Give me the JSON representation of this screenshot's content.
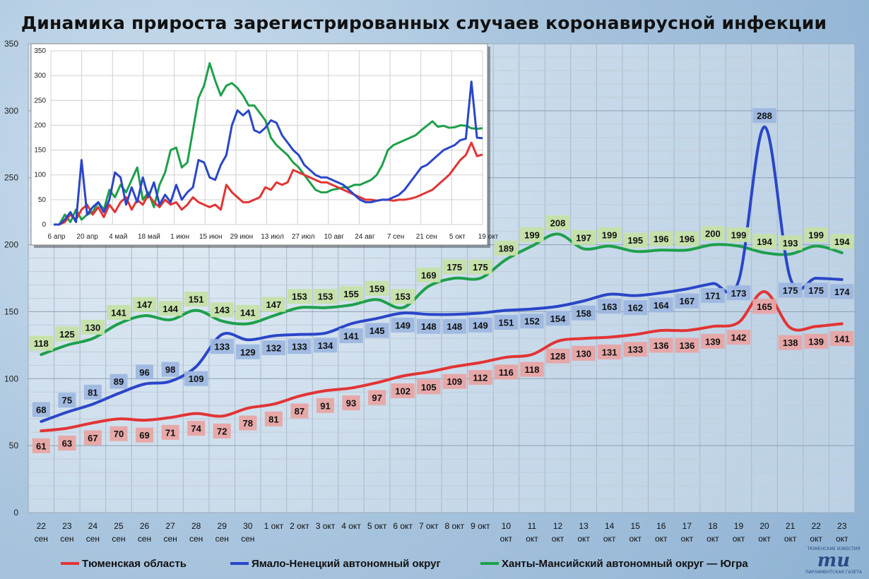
{
  "title": "Динамика прироста зарегистрированных случаев коронавирусной инфекции",
  "colors": {
    "tyumen": "#e23434",
    "yamal": "#2a46c8",
    "hmao": "#1ea04b",
    "tyumen_label_bg": "#e8a4a4",
    "yamal_label_bg": "#9db7e0",
    "hmao_label_bg": "#c6e0a8"
  },
  "chart_data": [
    {
      "type": "line",
      "title": "",
      "ylim": [
        0,
        350
      ],
      "yticks": [
        0,
        50,
        100,
        150,
        200,
        250,
        300,
        350
      ],
      "grid": true,
      "legend_position": "bottom",
      "x": [
        "22 сен",
        "23 сен",
        "24 сен",
        "25 сен",
        "26 сен",
        "27 сен",
        "28 сен",
        "29 сен",
        "30 сен",
        "1 окт",
        "2 окт",
        "3 окт",
        "4 окт",
        "5 окт",
        "6 окт",
        "7 окт",
        "8 окт",
        "9 окт",
        "10 окт",
        "11 окт",
        "12 окт",
        "13 окт",
        "14 окт",
        "15 окт",
        "16 окт",
        "17 окт",
        "18 окт",
        "19 окт",
        "20 окт",
        "21 окт",
        "22 окт",
        "23 окт"
      ],
      "series": [
        {
          "name": "Тюменская область",
          "key": "tyumen",
          "values": [
            61,
            63,
            67,
            70,
            69,
            71,
            74,
            72,
            78,
            81,
            87,
            91,
            93,
            97,
            102,
            105,
            109,
            112,
            116,
            118,
            128,
            130,
            131,
            133,
            136,
            136,
            139,
            142,
            165,
            138,
            139,
            141
          ]
        },
        {
          "name": "Ямало-Ненецкий автономный округ",
          "key": "yamal",
          "values": [
            68,
            75,
            81,
            89,
            96,
            98,
            109,
            133,
            129,
            132,
            133,
            134,
            141,
            145,
            149,
            148,
            148,
            149,
            151,
            152,
            154,
            158,
            163,
            162,
            164,
            167,
            171,
            173,
            288,
            175,
            175,
            174
          ]
        },
        {
          "name": "Ханты-Мансийский автономный округ — Югра",
          "key": "hmao",
          "values": [
            118,
            125,
            130,
            141,
            147,
            144,
            151,
            143,
            141,
            147,
            153,
            153,
            155,
            159,
            153,
            169,
            175,
            175,
            189,
            199,
            208,
            197,
            199,
            195,
            196,
            196,
            200,
            199,
            194,
            193,
            199,
            194
          ]
        }
      ]
    },
    {
      "type": "line",
      "title": "",
      "ylim": [
        0,
        350
      ],
      "yticks": [
        0,
        50,
        100,
        150,
        200,
        250,
        300,
        350
      ],
      "grid": true,
      "xticks": [
        "6 апр",
        "20 апр",
        "4 май",
        "18 май",
        "1 июн",
        "15 июн",
        "29 июн",
        "13 июл",
        "27 июл",
        "10 авг",
        "24 авг",
        "7 сен",
        "21 сен",
        "5 окт",
        "19 окт"
      ],
      "series": [
        {
          "key": "tyumen",
          "values": [
            0,
            0,
            5,
            20,
            10,
            30,
            40,
            20,
            35,
            15,
            40,
            25,
            45,
            55,
            30,
            50,
            40,
            60,
            45,
            35,
            50,
            40,
            45,
            30,
            40,
            55,
            45,
            40,
            35,
            40,
            30,
            80,
            65,
            55,
            45,
            45,
            50,
            55,
            75,
            70,
            85,
            80,
            85,
            110,
            105,
            100,
            95,
            90,
            85,
            85,
            80,
            75,
            70,
            65,
            60,
            55,
            50,
            50,
            48,
            50,
            50,
            48,
            50,
            50,
            52,
            55,
            60,
            65,
            70,
            80,
            90,
            100,
            115,
            130,
            140,
            165,
            138,
            141
          ]
        },
        {
          "key": "yamal",
          "values": [
            0,
            0,
            10,
            25,
            5,
            130,
            20,
            35,
            45,
            25,
            50,
            105,
            95,
            40,
            75,
            45,
            95,
            55,
            85,
            40,
            60,
            45,
            80,
            50,
            65,
            75,
            130,
            125,
            95,
            90,
            120,
            140,
            200,
            230,
            220,
            230,
            190,
            185,
            195,
            210,
            205,
            180,
            165,
            150,
            140,
            120,
            110,
            100,
            95,
            95,
            90,
            85,
            80,
            70,
            60,
            50,
            45,
            45,
            48,
            50,
            50,
            55,
            60,
            70,
            85,
            100,
            115,
            120,
            130,
            140,
            150,
            155,
            160,
            170,
            173,
            288,
            175,
            174
          ]
        },
        {
          "key": "hmao",
          "values": [
            0,
            0,
            20,
            5,
            30,
            10,
            20,
            25,
            45,
            30,
            70,
            55,
            80,
            65,
            90,
            115,
            50,
            65,
            35,
            80,
            105,
            150,
            155,
            115,
            125,
            190,
            255,
            280,
            325,
            290,
            260,
            280,
            285,
            275,
            260,
            240,
            240,
            225,
            210,
            175,
            160,
            150,
            140,
            125,
            115,
            100,
            85,
            70,
            65,
            65,
            70,
            72,
            75,
            75,
            80,
            80,
            85,
            90,
            100,
            120,
            150,
            160,
            165,
            170,
            175,
            180,
            190,
            199,
            208,
            197,
            199,
            195,
            196,
            200,
            199,
            194,
            193,
            194
          ]
        }
      ]
    }
  ]
}
